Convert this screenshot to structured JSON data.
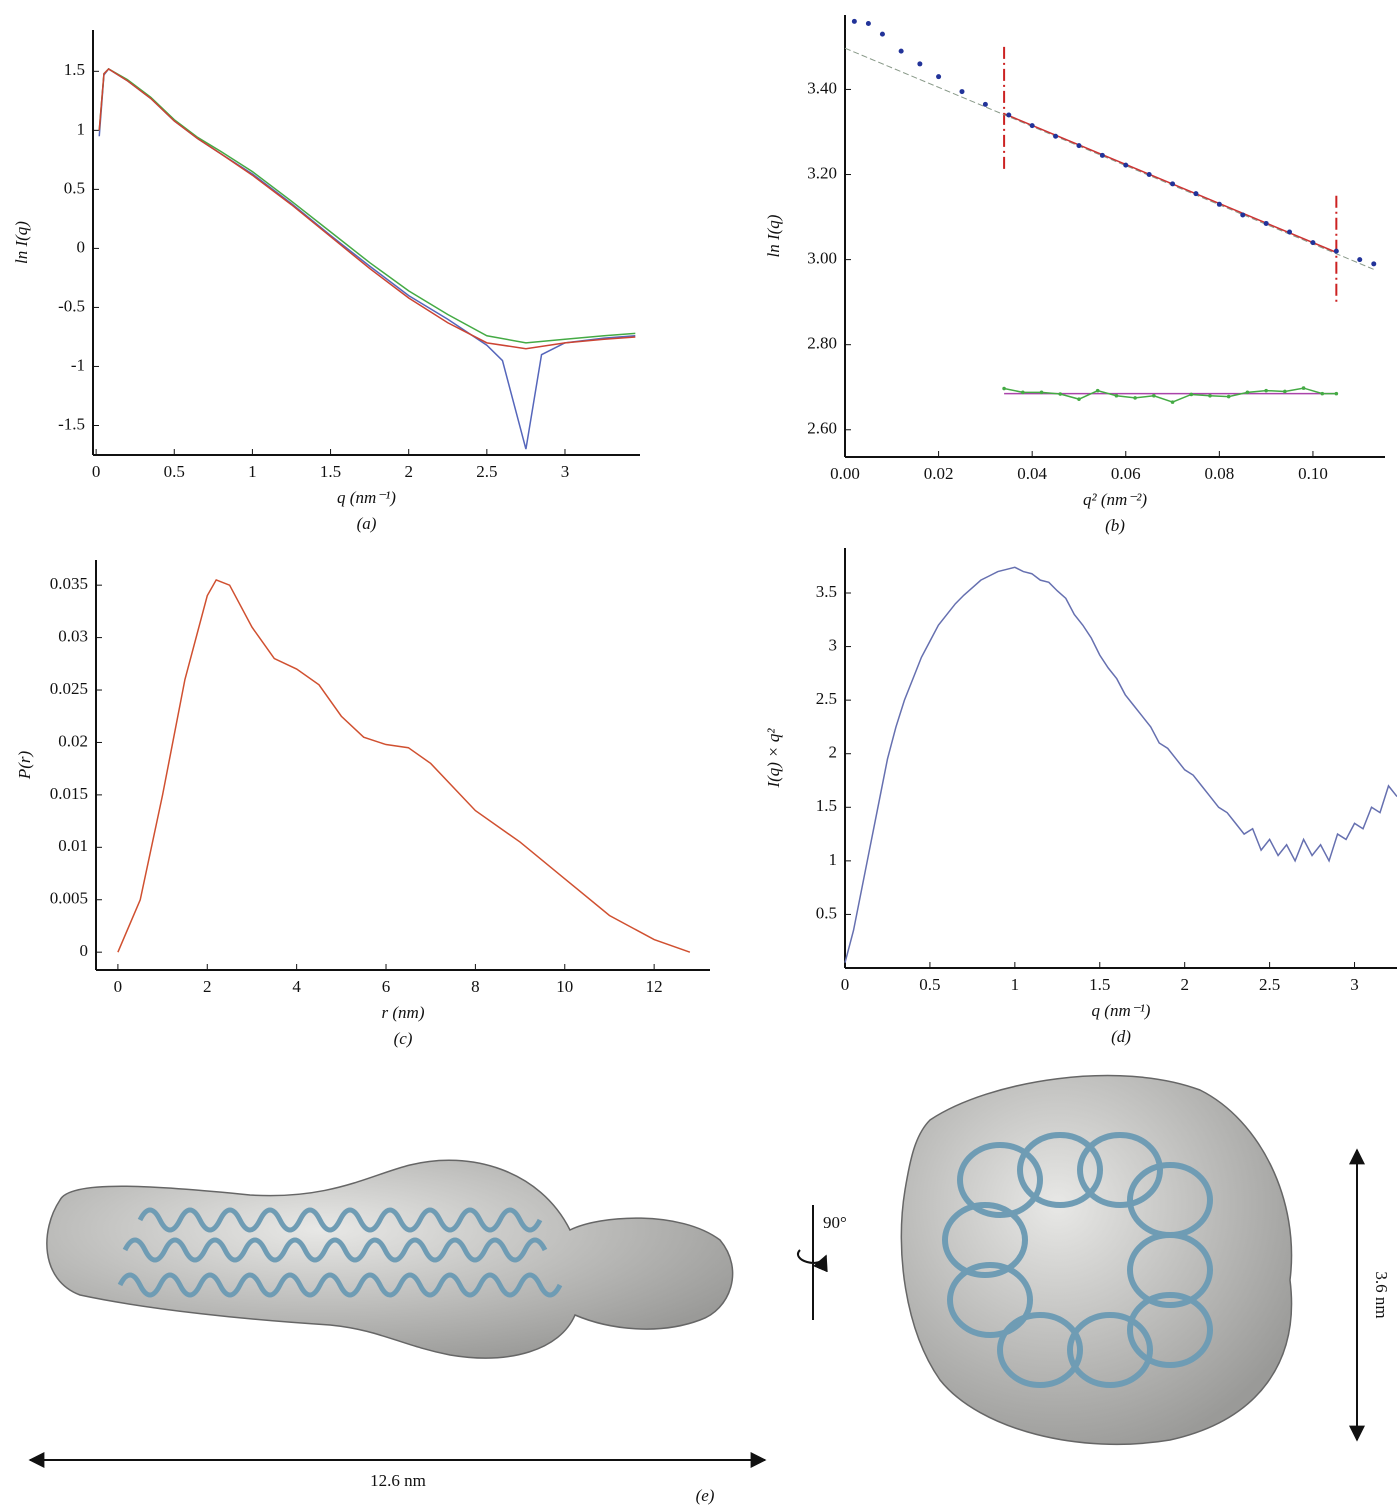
{
  "chart_data": [
    {
      "type": "line",
      "caption": "(a)",
      "x_label": "q (nm⁻¹)",
      "y_label": "ln I(q)",
      "xlim": [
        -0.02,
        3.48
      ],
      "ylim": [
        -1.75,
        1.85
      ],
      "xticks": [
        0,
        0.5,
        1,
        1.5,
        2,
        2.5,
        3
      ],
      "yticks": [
        -1.5,
        -1,
        -0.5,
        0,
        0.5,
        1,
        1.5
      ],
      "series": [
        {
          "color": "#5566bb",
          "mode": "line",
          "x": [
            0.02,
            0.05,
            0.08,
            0.2,
            0.35,
            0.5,
            0.65,
            0.8,
            1.0,
            1.25,
            1.5,
            1.75,
            2.0,
            2.25,
            2.5,
            2.6,
            2.75,
            2.85,
            3.0,
            3.25,
            3.45
          ],
          "values": [
            0.95,
            1.47,
            1.52,
            1.42,
            1.27,
            1.08,
            0.93,
            0.8,
            0.63,
            0.38,
            0.11,
            -0.15,
            -0.4,
            -0.6,
            -0.82,
            -0.95,
            -1.7,
            -0.9,
            -0.8,
            -0.76,
            -0.74
          ]
        },
        {
          "color": "#44aa44",
          "mode": "line",
          "x": [
            0.02,
            0.05,
            0.08,
            0.2,
            0.35,
            0.5,
            0.65,
            0.8,
            1.0,
            1.25,
            1.5,
            1.75,
            2.0,
            2.25,
            2.5,
            2.75,
            3.0,
            3.25,
            3.45
          ],
          "values": [
            1.0,
            1.48,
            1.52,
            1.43,
            1.28,
            1.09,
            0.94,
            0.82,
            0.65,
            0.4,
            0.14,
            -0.12,
            -0.36,
            -0.56,
            -0.74,
            -0.8,
            -0.77,
            -0.74,
            -0.72
          ]
        },
        {
          "color": "#cc4433",
          "mode": "line",
          "x": [
            0.02,
            0.05,
            0.08,
            0.2,
            0.35,
            0.5,
            0.65,
            0.8,
            1.0,
            1.25,
            1.5,
            1.75,
            2.0,
            2.25,
            2.5,
            2.75,
            3.0,
            3.25,
            3.45
          ],
          "values": [
            1.0,
            1.48,
            1.52,
            1.42,
            1.27,
            1.08,
            0.93,
            0.8,
            0.62,
            0.37,
            0.1,
            -0.17,
            -0.42,
            -0.63,
            -0.8,
            -0.85,
            -0.8,
            -0.77,
            -0.75
          ]
        }
      ]
    },
    {
      "type": "scatter",
      "caption": "(b)",
      "x_label": "q² (nm⁻²)",
      "y_label": "ln I(q)",
      "xlim": [
        0,
        0.1154
      ],
      "ylim": [
        2.536,
        3.575
      ],
      "xticks": [
        {
          "value": 0,
          "label": "0.00"
        },
        {
          "value": 0.02,
          "label": "0.02"
        },
        {
          "value": 0.04,
          "label": "0.04"
        },
        {
          "value": 0.06,
          "label": "0.06"
        },
        {
          "value": 0.08,
          "label": "0.08"
        },
        {
          "value": 0.1,
          "label": "0.10"
        }
      ],
      "yticks": [
        {
          "value": 2.6,
          "label": "2.60"
        },
        {
          "value": 2.8,
          "label": "2.80"
        },
        {
          "value": 3.0,
          "label": "3.00"
        },
        {
          "value": 3.2,
          "label": "3.20"
        },
        {
          "value": 3.4,
          "label": "3.40"
        }
      ],
      "range_markers": [
        0.034,
        0.105
      ],
      "series": [
        {
          "color": "#889988",
          "mode": "dashed",
          "x": [
            0,
            0.113
          ],
          "values": [
            3.497,
            2.977
          ]
        },
        {
          "color": "#cc3333",
          "mode": "line",
          "x": [
            0.034,
            0.105
          ],
          "values": [
            3.343,
            3.017
          ]
        },
        {
          "color": "#223399",
          "mode": "markers",
          "x": [
            0.002,
            0.005,
            0.008,
            0.012,
            0.016,
            0.02,
            0.025,
            0.03,
            0.035,
            0.04,
            0.045,
            0.05,
            0.055,
            0.06,
            0.065,
            0.07,
            0.075,
            0.08,
            0.085,
            0.09,
            0.095,
            0.1,
            0.105,
            0.11,
            0.113
          ],
          "values": [
            3.56,
            3.555,
            3.53,
            3.49,
            3.46,
            3.43,
            3.395,
            3.365,
            3.34,
            3.315,
            3.29,
            3.268,
            3.245,
            3.222,
            3.2,
            3.178,
            3.155,
            3.13,
            3.105,
            3.085,
            3.065,
            3.04,
            3.02,
            3.0,
            2.99
          ]
        },
        {
          "color": "#aa44aa",
          "mode": "line",
          "x": [
            0.034,
            0.105
          ],
          "values": [
            2.685,
            2.685
          ]
        },
        {
          "color": "#44aa44",
          "mode": "line+markers",
          "x": [
            0.034,
            0.038,
            0.042,
            0.046,
            0.05,
            0.054,
            0.058,
            0.062,
            0.066,
            0.07,
            0.074,
            0.078,
            0.082,
            0.086,
            0.09,
            0.094,
            0.098,
            0.102,
            0.105
          ],
          "values": [
            2.697,
            2.688,
            2.688,
            2.684,
            2.672,
            2.692,
            2.68,
            2.675,
            2.68,
            2.665,
            2.683,
            2.68,
            2.678,
            2.688,
            2.692,
            2.69,
            2.698,
            2.685,
            2.685
          ]
        }
      ]
    },
    {
      "type": "line",
      "caption": "(c)",
      "x_label": "r (nm)",
      "y_label": "P(r)",
      "xlim": [
        -0.49,
        13.25
      ],
      "ylim": [
        -0.0017,
        0.0374
      ],
      "xticks": [
        0,
        2,
        4,
        6,
        8,
        10,
        12
      ],
      "yticks": [
        0,
        0.005,
        0.01,
        0.015,
        0.02,
        0.025,
        0.03,
        0.035
      ],
      "series": [
        {
          "color": "#d05030",
          "mode": "line",
          "x": [
            0,
            0.5,
            1,
            1.5,
            2,
            2.2,
            2.5,
            3,
            3.5,
            4,
            4.5,
            5,
            5.5,
            6,
            6.5,
            7,
            8,
            9,
            10,
            11,
            12,
            12.8
          ],
          "values": [
            0,
            0.005,
            0.015,
            0.026,
            0.034,
            0.0355,
            0.035,
            0.031,
            0.028,
            0.027,
            0.0255,
            0.0225,
            0.0205,
            0.0198,
            0.0195,
            0.018,
            0.0135,
            0.0105,
            0.007,
            0.0035,
            0.0012,
            0
          ]
        }
      ]
    },
    {
      "type": "line",
      "caption": "(d)",
      "x_label": "q (nm⁻¹)",
      "y_label": "I(q) × q²",
      "xlim": [
        0,
        3.25
      ],
      "ylim": [
        0,
        3.92
      ],
      "xticks": [
        0,
        0.5,
        1,
        1.5,
        2,
        2.5,
        3
      ],
      "yticks": [
        0.5,
        1,
        1.5,
        2,
        2.5,
        3,
        3.5
      ],
      "series": [
        {
          "color": "#6670b0",
          "mode": "line",
          "x": [
            0,
            0.05,
            0.1,
            0.15,
            0.2,
            0.25,
            0.3,
            0.35,
            0.4,
            0.45,
            0.5,
            0.55,
            0.6,
            0.65,
            0.7,
            0.75,
            0.8,
            0.85,
            0.9,
            0.95,
            1.0,
            1.05,
            1.1,
            1.15,
            1.2,
            1.25,
            1.3,
            1.35,
            1.4,
            1.45,
            1.5,
            1.55,
            1.6,
            1.65,
            1.7,
            1.75,
            1.8,
            1.85,
            1.9,
            1.95,
            2.0,
            2.05,
            2.1,
            2.15,
            2.2,
            2.25,
            2.3,
            2.35,
            2.4,
            2.45,
            2.5,
            2.55,
            2.6,
            2.65,
            2.7,
            2.75,
            2.8,
            2.85,
            2.9,
            2.95,
            3.0,
            3.05,
            3.1,
            3.15,
            3.2,
            3.25
          ],
          "values": [
            0.05,
            0.35,
            0.75,
            1.15,
            1.55,
            1.95,
            2.25,
            2.5,
            2.7,
            2.9,
            3.05,
            3.2,
            3.3,
            3.4,
            3.48,
            3.55,
            3.62,
            3.66,
            3.7,
            3.72,
            3.74,
            3.7,
            3.68,
            3.62,
            3.6,
            3.52,
            3.45,
            3.3,
            3.2,
            3.08,
            2.92,
            2.8,
            2.7,
            2.55,
            2.45,
            2.35,
            2.25,
            2.1,
            2.05,
            1.95,
            1.85,
            1.8,
            1.7,
            1.6,
            1.5,
            1.45,
            1.35,
            1.25,
            1.3,
            1.1,
            1.2,
            1.05,
            1.15,
            1.0,
            1.2,
            1.05,
            1.15,
            1.0,
            1.25,
            1.2,
            1.35,
            1.3,
            1.5,
            1.45,
            1.7,
            1.6
          ]
        }
      ]
    }
  ],
  "figure_e": {
    "caption": "(e)",
    "length_label": "12.6 nm",
    "width_label": "3.6 nm",
    "rotation_label": "90°"
  }
}
